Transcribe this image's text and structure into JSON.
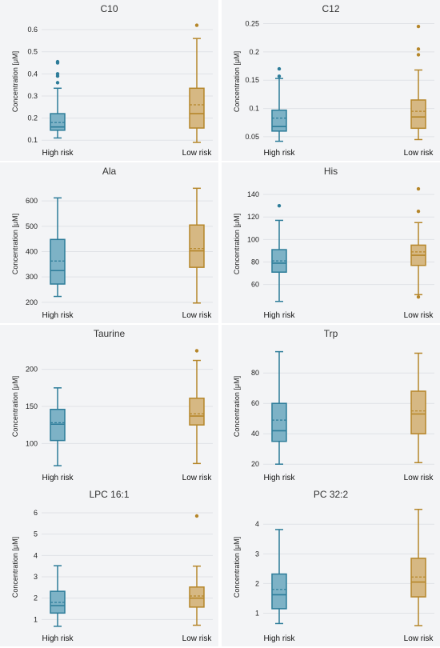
{
  "colors": {
    "high": "#2d7c99",
    "high_fill": "#7db2c6",
    "low": "#b5862a",
    "low_fill": "#d6b883",
    "panel_bg": "#f3f4f6",
    "grid": "#e0e2e6"
  },
  "chart_data": [
    {
      "type": "box",
      "title": "C10",
      "ylabel": "Concentration [μM]",
      "categories": [
        "High risk",
        "Low risk"
      ],
      "ylim": [
        0.09,
        0.64
      ],
      "yticks": [
        0.1,
        0.2,
        0.3,
        0.4,
        0.5,
        0.6
      ],
      "boxes": [
        {
          "name": "High risk",
          "min": 0.11,
          "q1": 0.145,
          "median": 0.16,
          "mean": 0.18,
          "q3": 0.22,
          "max": 0.335,
          "outliers": [
            0.36,
            0.39,
            0.4,
            0.45,
            0.455
          ]
        },
        {
          "name": "Low risk",
          "min": 0.09,
          "q1": 0.155,
          "median": 0.22,
          "mean": 0.26,
          "q3": 0.335,
          "max": 0.56,
          "outliers": [
            0.62
          ]
        }
      ]
    },
    {
      "type": "box",
      "title": "C12",
      "ylabel": "Concentration [μM]",
      "categories": [
        "High risk",
        "Low risk"
      ],
      "ylim": [
        0.04,
        0.255
      ],
      "yticks": [
        0.05,
        0.1,
        0.15,
        0.2,
        0.25
      ],
      "boxes": [
        {
          "name": "High risk",
          "min": 0.042,
          "q1": 0.06,
          "median": 0.068,
          "mean": 0.083,
          "q3": 0.097,
          "max": 0.153,
          "outliers": [
            0.157,
            0.17
          ]
        },
        {
          "name": "Low risk",
          "min": 0.045,
          "q1": 0.065,
          "median": 0.085,
          "mean": 0.095,
          "q3": 0.115,
          "max": 0.168,
          "outliers": [
            0.195,
            0.205,
            0.245
          ]
        }
      ]
    },
    {
      "type": "box",
      "title": "Ala",
      "ylabel": "Concentration [μM]",
      "categories": [
        "High risk",
        "Low risk"
      ],
      "ylim": [
        190,
        670
      ],
      "yticks": [
        200,
        300,
        400,
        500,
        600
      ],
      "boxes": [
        {
          "name": "High risk",
          "min": 223,
          "q1": 272,
          "median": 325,
          "mean": 363,
          "q3": 448,
          "max": 612,
          "outliers": []
        },
        {
          "name": "Low risk",
          "min": 197,
          "q1": 338,
          "median": 403,
          "mean": 412,
          "q3": 505,
          "max": 650,
          "outliers": []
        }
      ]
    },
    {
      "type": "box",
      "title": "His",
      "ylabel": "Concentration [μM]",
      "categories": [
        "High risk",
        "Low risk"
      ],
      "ylim": [
        42,
        150
      ],
      "yticks": [
        60,
        80,
        100,
        120,
        140
      ],
      "boxes": [
        {
          "name": "High risk",
          "min": 45,
          "q1": 71,
          "median": 79,
          "mean": 81,
          "q3": 91,
          "max": 117,
          "outliers": [
            130
          ]
        },
        {
          "name": "Low risk",
          "min": 51,
          "q1": 77,
          "median": 86,
          "mean": 89,
          "q3": 95,
          "max": 115,
          "outliers": [
            49,
            125,
            145
          ]
        }
      ]
    },
    {
      "type": "box",
      "title": "Taurine",
      "ylabel": "Concentration [μM]",
      "categories": [
        "High risk",
        "Low risk"
      ],
      "ylim": [
        68,
        232
      ],
      "yticks": [
        100,
        150,
        200
      ],
      "boxes": [
        {
          "name": "High risk",
          "min": 70,
          "q1": 104,
          "median": 126,
          "mean": 128,
          "q3": 146,
          "max": 175,
          "outliers": []
        },
        {
          "name": "Low risk",
          "min": 73,
          "q1": 125,
          "median": 137,
          "mean": 140,
          "q3": 161,
          "max": 212,
          "outliers": [
            225
          ]
        }
      ]
    },
    {
      "type": "box",
      "title": "Trp",
      "ylabel": "Concentration [μM]",
      "categories": [
        "High risk",
        "Low risk"
      ],
      "ylim": [
        18,
        98
      ],
      "yticks": [
        20,
        40,
        60,
        80
      ],
      "boxes": [
        {
          "name": "High risk",
          "min": 20,
          "q1": 35,
          "median": 42,
          "mean": 49,
          "q3": 60,
          "max": 94,
          "outliers": []
        },
        {
          "name": "Low risk",
          "min": 21,
          "q1": 40,
          "median": 53,
          "mean": 55,
          "q3": 68,
          "max": 93,
          "outliers": []
        }
      ]
    },
    {
      "type": "box",
      "title": "LPC 16:1",
      "ylabel": "Concentration [μM]",
      "categories": [
        "High risk",
        "Low risk"
      ],
      "ylim": [
        0.6,
        6.3
      ],
      "yticks": [
        1,
        2,
        3,
        4,
        5,
        6
      ],
      "boxes": [
        {
          "name": "High risk",
          "min": 0.68,
          "q1": 1.3,
          "median": 1.65,
          "mean": 1.8,
          "q3": 2.32,
          "max": 3.52,
          "outliers": []
        },
        {
          "name": "Low risk",
          "min": 0.73,
          "q1": 1.58,
          "median": 2.0,
          "mean": 2.1,
          "q3": 2.52,
          "max": 3.5,
          "outliers": [
            5.85
          ]
        }
      ]
    },
    {
      "type": "box",
      "title": "PC 32:2",
      "ylabel": "Concentration [μM]",
      "categories": [
        "High risk",
        "Low risk"
      ],
      "ylim": [
        0.5,
        4.6
      ],
      "yticks": [
        1,
        2,
        3,
        4
      ],
      "boxes": [
        {
          "name": "High risk",
          "min": 0.65,
          "q1": 1.15,
          "median": 1.62,
          "mean": 1.8,
          "q3": 2.32,
          "max": 3.82,
          "outliers": []
        },
        {
          "name": "Low risk",
          "min": 0.58,
          "q1": 1.55,
          "median": 2.05,
          "mean": 2.22,
          "q3": 2.85,
          "max": 4.5,
          "outliers": []
        }
      ]
    }
  ]
}
